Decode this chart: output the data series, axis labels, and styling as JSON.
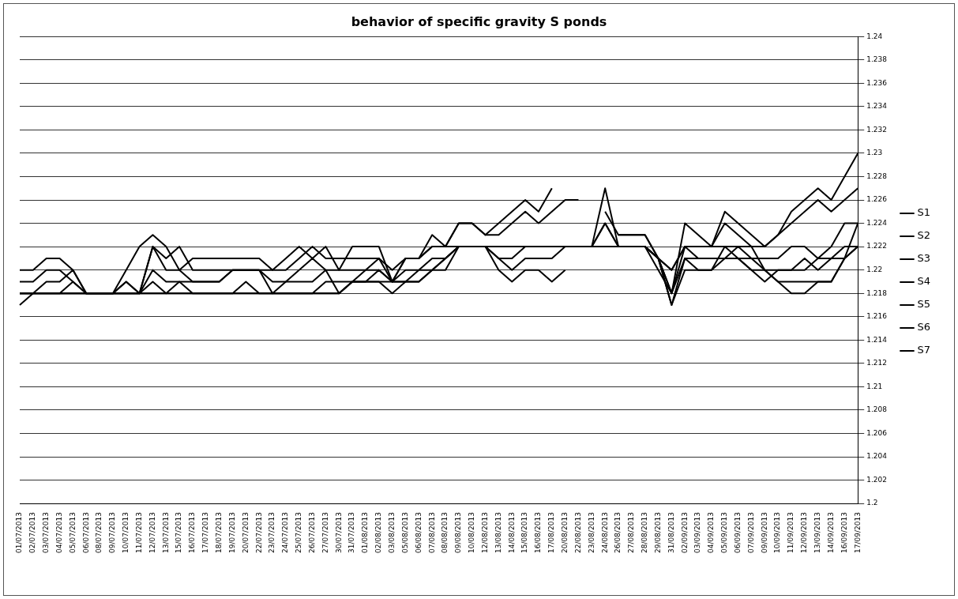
{
  "chart_data": {
    "type": "line",
    "title": "behavior of specific gravity S ponds",
    "categories": [
      "01/07/2013",
      "02/07/2013",
      "03/07/2013",
      "04/07/2013",
      "05/07/2013",
      "06/07/2013",
      "08/07/2013",
      "09/07/2013",
      "10/07/2013",
      "11/07/2013",
      "12/07/2013",
      "13/07/2013",
      "15/07/2013",
      "16/07/2013",
      "17/07/2013",
      "18/07/2013",
      "19/07/2013",
      "20/07/2013",
      "22/07/2013",
      "23/07/2013",
      "24/07/2013",
      "25/07/2013",
      "26/07/2013",
      "27/07/2013",
      "30/07/2013",
      "31/07/2013",
      "01/08/2013",
      "02/08/2013",
      "03/08/2013",
      "05/08/2013",
      "06/08/2013",
      "07/08/2013",
      "08/08/2013",
      "09/08/2013",
      "10/08/2013",
      "12/08/2013",
      "13/08/2013",
      "14/08/2013",
      "15/08/2013",
      "16/08/2013",
      "17/08/2013",
      "20/08/2013",
      "22/08/2013",
      "23/08/2013",
      "24/08/2013",
      "26/08/2013",
      "27/08/2013",
      "28/08/2013",
      "29/08/2013",
      "31/08/2013",
      "02/09/2013",
      "03/09/2013",
      "04/09/2013",
      "05/09/2013",
      "06/09/2013",
      "07/09/2013",
      "09/09/2013",
      "10/09/2013",
      "11/09/2013",
      "12/09/2013",
      "13/09/2013",
      "14/09/2013",
      "16/09/2013",
      "17/09/2013"
    ],
    "series": [
      {
        "name": "S1",
        "color": "#000000",
        "values": [
          1.217,
          1.218,
          1.218,
          1.218,
          1.218,
          1.218,
          1.218,
          1.218,
          1.218,
          1.218,
          1.218,
          1.218,
          1.218,
          1.218,
          1.218,
          1.218,
          1.218,
          1.218,
          1.218,
          1.218,
          1.218,
          1.218,
          1.218,
          1.218,
          1.218,
          1.219,
          1.219,
          1.219,
          1.218,
          1.219,
          1.219,
          1.22,
          1.22,
          1.222,
          1.222,
          1.222,
          1.221,
          1.221,
          1.222,
          1.222,
          1.222,
          1.222,
          1.222,
          1.222,
          1.224,
          1.222,
          1.222,
          1.222,
          1.221,
          1.217,
          1.22,
          1.22,
          1.22,
          1.221,
          1.221,
          1.22,
          1.22,
          1.219,
          1.219,
          1.219,
          1.219,
          1.219,
          1.221,
          1.222
        ]
      },
      {
        "name": "S2",
        "color": "#000000",
        "values": [
          1.218,
          1.218,
          1.218,
          1.218,
          1.218,
          1.218,
          1.218,
          1.218,
          1.219,
          1.218,
          1.22,
          1.219,
          1.219,
          1.218,
          1.218,
          1.218,
          1.218,
          1.219,
          1.218,
          1.218,
          1.218,
          1.218,
          1.218,
          1.219,
          1.219,
          1.219,
          1.219,
          1.22,
          1.219,
          1.219,
          1.22,
          1.22,
          1.221,
          1.222,
          1.222,
          1.222,
          1.222,
          1.222,
          1.222,
          1.222,
          1.222,
          null,
          null,
          null,
          1.225,
          1.223,
          1.223,
          1.223,
          1.221,
          1.218,
          1.222,
          1.221,
          1.221,
          1.221,
          1.221,
          1.221,
          1.22,
          1.22,
          1.22,
          1.22,
          1.221,
          1.221,
          1.222,
          1.222
        ]
      },
      {
        "name": "S3",
        "color": "#000000",
        "values": [
          1.219,
          1.219,
          1.22,
          1.22,
          1.219,
          1.218,
          1.218,
          1.218,
          1.219,
          1.218,
          1.222,
          1.22,
          1.22,
          1.219,
          1.219,
          1.219,
          1.22,
          1.22,
          1.22,
          1.219,
          1.219,
          1.22,
          1.221,
          1.22,
          1.22,
          1.22,
          1.22,
          1.22,
          1.219,
          1.221,
          1.221,
          1.222,
          1.222,
          1.224,
          1.224,
          1.223,
          1.224,
          1.225,
          1.226,
          1.225,
          1.227,
          null,
          null,
          null,
          null,
          1.222,
          1.222,
          1.222,
          1.22,
          1.218,
          1.224,
          1.223,
          1.222,
          1.225,
          1.224,
          1.223,
          1.222,
          1.223,
          1.225,
          1.226,
          1.227,
          1.226,
          1.228,
          1.23
        ]
      },
      {
        "name": "S4",
        "color": "#000000",
        "values": [
          1.22,
          1.22,
          1.221,
          1.221,
          1.22,
          1.218,
          1.218,
          1.218,
          1.22,
          1.222,
          1.223,
          1.222,
          1.22,
          1.221,
          1.221,
          1.221,
          1.221,
          1.221,
          1.221,
          1.22,
          1.221,
          1.222,
          1.221,
          1.222,
          1.22,
          1.222,
          1.222,
          1.222,
          1.219,
          1.221,
          1.221,
          1.223,
          1.222,
          1.224,
          1.224,
          1.223,
          1.223,
          1.224,
          1.225,
          1.224,
          1.225,
          1.226,
          1.226,
          null,
          null,
          1.223,
          1.223,
          1.223,
          1.221,
          1.22,
          1.222,
          1.222,
          1.222,
          1.224,
          1.223,
          1.222,
          1.222,
          1.223,
          1.224,
          1.225,
          1.226,
          1.225,
          1.226,
          1.227
        ]
      },
      {
        "name": "S5",
        "color": "#000000",
        "values": [
          1.218,
          1.218,
          1.219,
          1.219,
          1.22,
          1.218,
          1.218,
          1.218,
          1.218,
          1.218,
          1.222,
          1.221,
          1.222,
          1.22,
          1.22,
          1.22,
          1.22,
          1.22,
          1.22,
          1.22,
          1.22,
          1.221,
          1.222,
          1.221,
          1.221,
          1.221,
          1.221,
          1.221,
          1.22,
          1.221,
          1.221,
          1.222,
          1.222,
          1.222,
          1.222,
          1.222,
          1.22,
          1.219,
          1.22,
          1.22,
          1.219,
          1.22,
          null,
          1.222,
          1.227,
          1.222,
          1.222,
          1.222,
          1.221,
          1.217,
          1.221,
          1.22,
          1.22,
          1.222,
          1.221,
          1.22,
          1.219,
          1.22,
          1.22,
          1.221,
          1.22,
          1.221,
          1.221,
          1.224
        ]
      },
      {
        "name": "S6",
        "color": "#000000",
        "values": [
          1.218,
          1.218,
          1.218,
          1.218,
          1.219,
          1.218,
          1.218,
          1.218,
          1.218,
          1.218,
          1.219,
          1.218,
          1.219,
          1.219,
          1.219,
          1.219,
          1.22,
          1.22,
          1.22,
          1.218,
          1.219,
          1.219,
          1.219,
          1.22,
          1.218,
          1.219,
          1.22,
          1.221,
          1.219,
          1.22,
          1.22,
          1.221,
          1.221,
          1.222,
          1.222,
          1.222,
          1.221,
          1.22,
          1.221,
          1.221,
          1.221,
          1.222,
          1.222,
          1.222,
          1.224,
          1.222,
          1.222,
          1.222,
          1.221,
          1.218,
          1.221,
          1.221,
          1.221,
          1.221,
          1.222,
          1.221,
          1.221,
          1.221,
          1.222,
          1.222,
          1.221,
          1.222,
          1.224,
          1.224
        ]
      },
      {
        "name": "S7",
        "color": "#000000",
        "values": [
          1.218,
          1.218,
          1.218,
          1.218,
          1.218,
          1.218,
          1.218,
          1.218,
          1.218,
          1.218,
          1.218,
          1.218,
          1.218,
          1.218,
          1.218,
          1.218,
          1.218,
          1.218,
          1.218,
          1.218,
          1.218,
          1.218,
          1.218,
          1.218,
          1.218,
          1.219,
          1.219,
          1.219,
          1.219,
          1.219,
          1.219,
          1.22,
          1.221,
          1.222,
          1.222,
          1.222,
          1.222,
          1.222,
          1.222,
          1.222,
          1.222,
          1.222,
          1.222,
          1.222,
          1.222,
          1.222,
          1.222,
          1.222,
          1.221,
          1.22,
          1.222,
          1.222,
          1.222,
          1.222,
          1.222,
          1.222,
          1.22,
          1.219,
          1.218,
          1.218,
          1.219,
          1.219,
          1.221,
          1.222
        ]
      }
    ],
    "ylim": [
      1.2,
      1.24
    ],
    "yticks": [
      1.2,
      1.202,
      1.204,
      1.206,
      1.208,
      1.21,
      1.212,
      1.214,
      1.216,
      1.218,
      1.22,
      1.222,
      1.224,
      1.226,
      1.228,
      1.23,
      1.232,
      1.234,
      1.236,
      1.238,
      1.24
    ],
    "grid": "y",
    "legend": "right",
    "marker": "none",
    "line_style": "solid"
  }
}
